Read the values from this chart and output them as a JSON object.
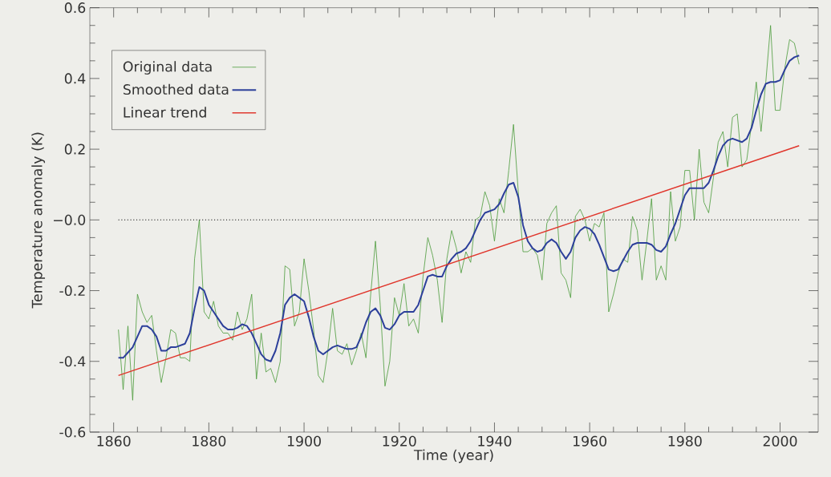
{
  "chart_data": {
    "type": "line",
    "xlabel": "Time (year)",
    "ylabel": "Temperature anomaly (K)",
    "x": [
      1861,
      1862,
      1863,
      1864,
      1865,
      1866,
      1867,
      1868,
      1869,
      1870,
      1871,
      1872,
      1873,
      1874,
      1875,
      1876,
      1877,
      1878,
      1879,
      1880,
      1881,
      1882,
      1883,
      1884,
      1885,
      1886,
      1887,
      1888,
      1889,
      1890,
      1891,
      1892,
      1893,
      1894,
      1895,
      1896,
      1897,
      1898,
      1899,
      1900,
      1901,
      1902,
      1903,
      1904,
      1905,
      1906,
      1907,
      1908,
      1909,
      1910,
      1911,
      1912,
      1913,
      1914,
      1915,
      1916,
      1917,
      1918,
      1919,
      1920,
      1921,
      1922,
      1923,
      1924,
      1925,
      1926,
      1927,
      1928,
      1929,
      1930,
      1931,
      1932,
      1933,
      1934,
      1935,
      1936,
      1937,
      1938,
      1939,
      1940,
      1941,
      1942,
      1943,
      1944,
      1945,
      1946,
      1947,
      1948,
      1949,
      1950,
      1951,
      1952,
      1953,
      1954,
      1955,
      1956,
      1957,
      1958,
      1959,
      1960,
      1961,
      1962,
      1963,
      1964,
      1965,
      1966,
      1967,
      1968,
      1969,
      1970,
      1971,
      1972,
      1973,
      1974,
      1975,
      1976,
      1977,
      1978,
      1979,
      1980,
      1981,
      1982,
      1983,
      1984,
      1985,
      1986,
      1987,
      1988,
      1989,
      1990,
      1991,
      1992,
      1993,
      1994,
      1995,
      1996,
      1997,
      1998,
      1999,
      2000,
      2001,
      2002,
      2003,
      2004
    ],
    "series": [
      {
        "name": "Original data",
        "color": "#4a9a3a",
        "values": [
          -0.31,
          -0.48,
          -0.3,
          -0.51,
          -0.21,
          -0.26,
          -0.29,
          -0.27,
          -0.37,
          -0.46,
          -0.39,
          -0.31,
          -0.32,
          -0.39,
          -0.39,
          -0.4,
          -0.11,
          0.0,
          -0.26,
          -0.28,
          -0.23,
          -0.3,
          -0.32,
          -0.32,
          -0.34,
          -0.26,
          -0.31,
          -0.28,
          -0.21,
          -0.45,
          -0.32,
          -0.43,
          -0.42,
          -0.46,
          -0.4,
          -0.13,
          -0.14,
          -0.3,
          -0.26,
          -0.11,
          -0.2,
          -0.31,
          -0.44,
          -0.46,
          -0.37,
          -0.25,
          -0.37,
          -0.38,
          -0.35,
          -0.41,
          -0.37,
          -0.32,
          -0.39,
          -0.21,
          -0.06,
          -0.24,
          -0.47,
          -0.4,
          -0.22,
          -0.27,
          -0.18,
          -0.3,
          -0.28,
          -0.32,
          -0.16,
          -0.05,
          -0.1,
          -0.17,
          -0.29,
          -0.11,
          -0.03,
          -0.08,
          -0.15,
          -0.09,
          -0.12,
          0.0,
          0.01,
          0.08,
          0.04,
          -0.06,
          0.06,
          0.02,
          0.14,
          0.27,
          0.08,
          -0.09,
          -0.09,
          -0.08,
          -0.1,
          -0.17,
          -0.01,
          0.02,
          0.04,
          -0.15,
          -0.17,
          -0.22,
          0.01,
          0.03,
          0.0,
          -0.06,
          -0.01,
          -0.02,
          0.02,
          -0.26,
          -0.21,
          -0.15,
          -0.11,
          -0.12,
          0.01,
          -0.03,
          -0.17,
          -0.06,
          0.06,
          -0.17,
          -0.13,
          -0.17,
          0.08,
          -0.06,
          -0.02,
          0.14,
          0.14,
          0.0,
          0.2,
          0.05,
          0.02,
          0.12,
          0.22,
          0.25,
          0.15,
          0.29,
          0.3,
          0.15,
          0.17,
          0.27,
          0.39,
          0.25,
          0.39,
          0.55,
          0.31,
          0.31,
          0.43,
          0.51,
          0.5,
          0.44
        ]
      },
      {
        "name": "Smoothed data",
        "color": "#2c3f9a",
        "values": [
          -0.39,
          -0.39,
          -0.375,
          -0.36,
          -0.33,
          -0.3,
          -0.3,
          -0.31,
          -0.33,
          -0.37,
          -0.37,
          -0.36,
          -0.36,
          -0.355,
          -0.35,
          -0.32,
          -0.25,
          -0.19,
          -0.2,
          -0.24,
          -0.26,
          -0.28,
          -0.3,
          -0.31,
          -0.31,
          -0.305,
          -0.295,
          -0.3,
          -0.32,
          -0.35,
          -0.38,
          -0.395,
          -0.4,
          -0.37,
          -0.32,
          -0.24,
          -0.22,
          -0.21,
          -0.22,
          -0.23,
          -0.275,
          -0.33,
          -0.37,
          -0.38,
          -0.37,
          -0.36,
          -0.355,
          -0.36,
          -0.365,
          -0.365,
          -0.36,
          -0.33,
          -0.29,
          -0.26,
          -0.25,
          -0.27,
          -0.305,
          -0.31,
          -0.295,
          -0.27,
          -0.26,
          -0.26,
          -0.26,
          -0.24,
          -0.2,
          -0.16,
          -0.155,
          -0.16,
          -0.16,
          -0.13,
          -0.11,
          -0.095,
          -0.09,
          -0.08,
          -0.06,
          -0.03,
          0.0,
          0.02,
          0.025,
          0.03,
          0.045,
          0.075,
          0.1,
          0.105,
          0.065,
          -0.015,
          -0.06,
          -0.08,
          -0.09,
          -0.085,
          -0.065,
          -0.055,
          -0.065,
          -0.09,
          -0.11,
          -0.09,
          -0.05,
          -0.03,
          -0.02,
          -0.025,
          -0.04,
          -0.07,
          -0.105,
          -0.14,
          -0.145,
          -0.14,
          -0.115,
          -0.09,
          -0.07,
          -0.065,
          -0.065,
          -0.065,
          -0.07,
          -0.085,
          -0.09,
          -0.075,
          -0.04,
          -0.01,
          0.03,
          0.07,
          0.09,
          0.09,
          0.09,
          0.09,
          0.105,
          0.14,
          0.18,
          0.21,
          0.225,
          0.23,
          0.225,
          0.22,
          0.23,
          0.26,
          0.31,
          0.355,
          0.385,
          0.39,
          0.39,
          0.395,
          0.425,
          0.45,
          0.46,
          0.465
        ]
      },
      {
        "name": "Linear trend",
        "color": "#e0352b",
        "x": [
          1861,
          2004
        ],
        "values": [
          -0.44,
          0.21
        ]
      }
    ],
    "xlim": [
      1855,
      2008
    ],
    "ylim": [
      -0.6,
      0.6
    ],
    "xticks": [
      1860,
      1880,
      1900,
      1920,
      1940,
      1960,
      1980,
      2000
    ],
    "yticks": [
      -0.6,
      -0.4,
      -0.2,
      {
        "value": 0,
        "label": "−0.0"
      },
      0.2,
      0.4,
      0.6
    ],
    "ref_lines": [
      {
        "axis": "y",
        "value": 0,
        "color": "#000000",
        "line_style": "dotted"
      }
    ],
    "legend": "top left",
    "line_style": "solid",
    "marker": "none"
  }
}
